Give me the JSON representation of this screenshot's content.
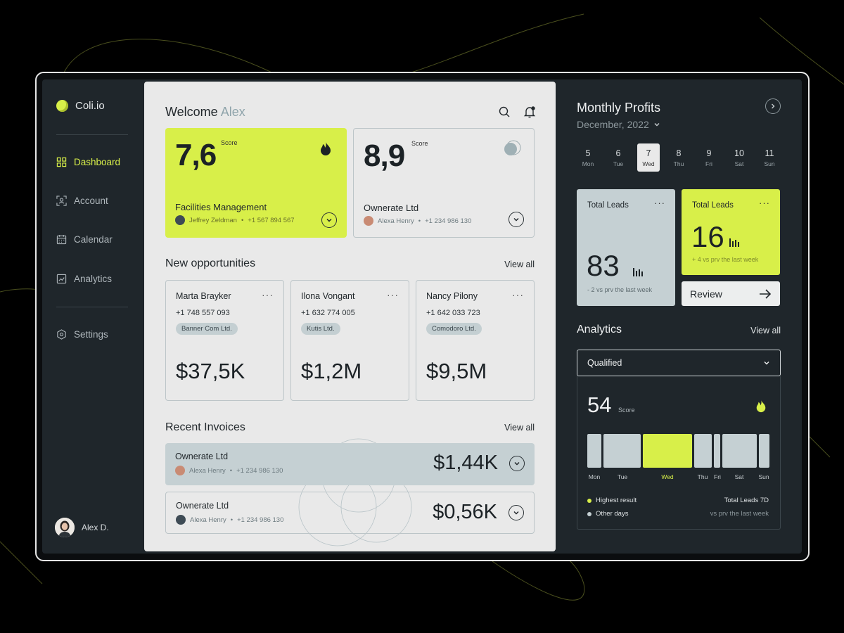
{
  "brand": {
    "name": "Coli.io",
    "color": "#d8ef49"
  },
  "sidebar": {
    "items": [
      {
        "label": "Dashboard",
        "icon": "grid-icon",
        "active": true
      },
      {
        "label": "Account",
        "icon": "user-scan-icon"
      },
      {
        "label": "Calendar",
        "icon": "calendar-icon"
      },
      {
        "label": "Analytics",
        "icon": "chart-icon"
      }
    ],
    "settings": {
      "label": "Settings",
      "icon": "hexagon-gear-icon"
    },
    "user": {
      "name": "Alex D."
    }
  },
  "main": {
    "welcome_prefix": "Welcome",
    "welcome_name": "Alex",
    "scores": [
      {
        "value": "7,6",
        "label": "Score",
        "title": "Facilities Management",
        "person": "Jeffrey Zeldman",
        "phone": "+1 567 894 567"
      },
      {
        "value": "8,9",
        "label": "Score",
        "title": "Ownerate Ltd",
        "person": "Alexa Henry",
        "phone": "+1 234 986 130"
      }
    ],
    "opportunities": {
      "title": "New opportunities",
      "view_all": "View all",
      "items": [
        {
          "name": "Marta Brayker",
          "phone": "+1 748 557 093",
          "company": "Banner Com Ltd.",
          "amount": "$37,5K"
        },
        {
          "name": "Ilona Vongant",
          "phone": "+1 632 774 005",
          "company": "Kutis Ltd.",
          "amount": "$1,2M"
        },
        {
          "name": "Nancy Pilony",
          "phone": "+1 642 033 723",
          "company": "Comodoro Ltd.",
          "amount": "$9,5M"
        }
      ]
    },
    "invoices": {
      "title": "Recent Invoices",
      "view_all": "View all",
      "items": [
        {
          "name": "Ownerate Ltd",
          "person": "Alexa Henry",
          "phone": "+1 234 986 130",
          "amount": "$1,44K"
        },
        {
          "name": "Ownerate Ltd",
          "person": "Alexa Henry",
          "phone": "+1 234 986 130",
          "amount": "$0,56K"
        }
      ]
    }
  },
  "right": {
    "title": "Monthly Profits",
    "month": "December, 2022",
    "days": [
      {
        "num": "5",
        "dow": "Mon"
      },
      {
        "num": "6",
        "dow": "Tue"
      },
      {
        "num": "7",
        "dow": "Wed",
        "selected": true
      },
      {
        "num": "8",
        "dow": "Thu"
      },
      {
        "num": "9",
        "dow": "Fri"
      },
      {
        "num": "10",
        "dow": "Sat"
      },
      {
        "num": "11",
        "dow": "Sun"
      }
    ],
    "leads": [
      {
        "title": "Total Leads",
        "value": "83",
        "foot": "- 2 vs prv the last week"
      },
      {
        "title": "Total Leads",
        "value": "16",
        "foot": "+ 4 vs prv the last week"
      }
    ],
    "review_label": "Review",
    "analytics": {
      "title": "Analytics",
      "view_all": "View all",
      "filter": "Qualified",
      "score": "54",
      "score_label": "Score",
      "days": [
        "Mon",
        "Tue",
        "Wed",
        "Thu",
        "Fri",
        "Sat",
        "Sun"
      ],
      "highlight_day": "Wed",
      "legend": [
        {
          "label": "Highest result",
          "color": "#d8ef49",
          "right": "Total Leads 7D"
        },
        {
          "label": "Other days",
          "color": "#c5d0d3",
          "right": "vs prv the last week"
        }
      ]
    }
  }
}
